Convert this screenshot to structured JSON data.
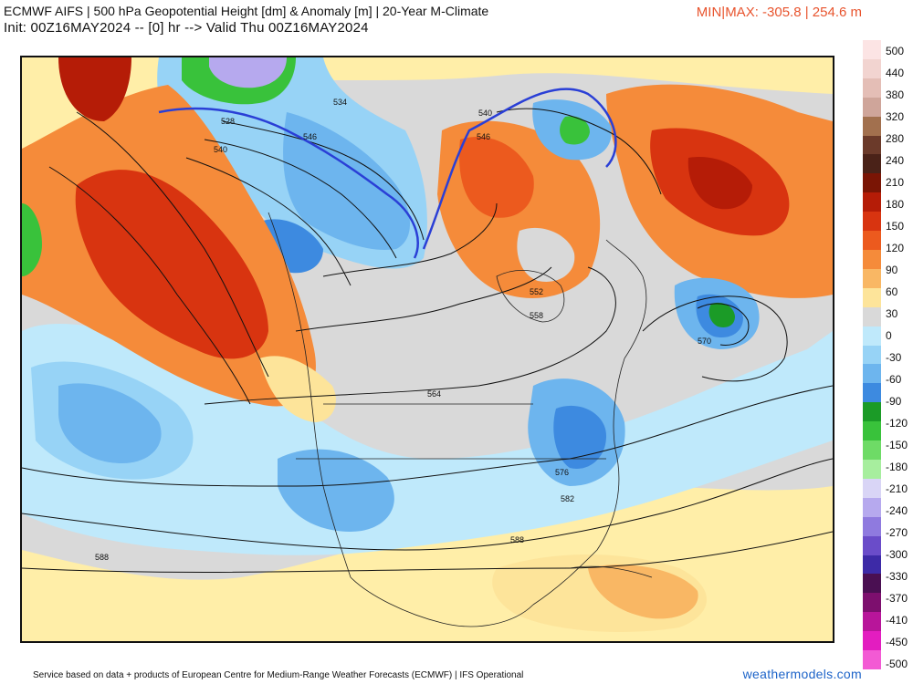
{
  "header": {
    "title_line1": "ECMWF AIFS | 500 hPa Geopotential Height [dm] & Anomaly [m] | 20-Year M-Climate",
    "title_line2": "Init: 00Z16MAY2024 -- [0] hr --> Valid Thu 00Z16MAY2024",
    "minmax": "MIN|MAX: -305.8 | 254.6 m"
  },
  "map": {
    "region": "North America",
    "contour_labels": [
      "528",
      "534",
      "540",
      "546",
      "540",
      "546",
      "552",
      "558",
      "564",
      "570",
      "576",
      "582",
      "588",
      "588",
      "540"
    ]
  },
  "legend": {
    "labels": [
      "500",
      "440",
      "380",
      "320",
      "280",
      "240",
      "210",
      "180",
      "150",
      "120",
      "90",
      "60",
      "30",
      "0",
      "-30",
      "-60",
      "-90",
      "-120",
      "-150",
      "-180",
      "-210",
      "-240",
      "-270",
      "-300",
      "-330",
      "-370",
      "-410",
      "-450",
      "-500"
    ],
    "colors": [
      "#fce4e4",
      "#f2d4d0",
      "#e4beb6",
      "#cfa59a",
      "#a2704e",
      "#6b3a2a",
      "#4a2218",
      "#7a1505",
      "#b51c07",
      "#d83410",
      "#ec5a1e",
      "#f58b3a",
      "#f9b764",
      "#fde49a",
      "#d9d9d9",
      "#bfe9fb",
      "#97d3f6",
      "#6db5ee",
      "#3d8ae0",
      "#1b9b27",
      "#39c23b",
      "#6edb66",
      "#a7ee9e",
      "#d9d5f6",
      "#b6a9ee",
      "#8f7adf",
      "#6a4cc9",
      "#3d2aa7",
      "#4a0f52",
      "#7d0f6e",
      "#b8159a",
      "#e31dc0",
      "#f35ad4"
    ]
  },
  "footer": {
    "credit": "Service based on data + products of European Centre for Medium-Range Weather Forecasts (ECMWF) | IFS Operational",
    "brand": "weathermodels.com"
  }
}
